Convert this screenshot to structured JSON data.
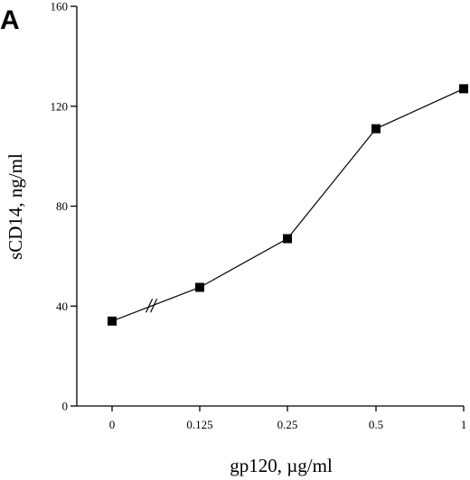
{
  "panel_label": "A",
  "chart_data": {
    "type": "line",
    "title": "",
    "xlabel": "gp120, µg/ml",
    "ylabel": "sCD14, ng/ml",
    "categories": [
      "0",
      "0.125",
      "0.25",
      "0.5",
      "1"
    ],
    "series": [
      {
        "values": [
          34,
          47.5,
          67,
          111,
          127
        ]
      }
    ],
    "ylim": [
      0,
      160
    ],
    "yticks": [
      "0",
      "40",
      "80",
      "120",
      "160"
    ],
    "axis_break": "between 0 and 0.125",
    "marker": "square",
    "grid": false,
    "legend": "none",
    "colors": {
      "line": "#000000",
      "marker": "#000000"
    }
  }
}
